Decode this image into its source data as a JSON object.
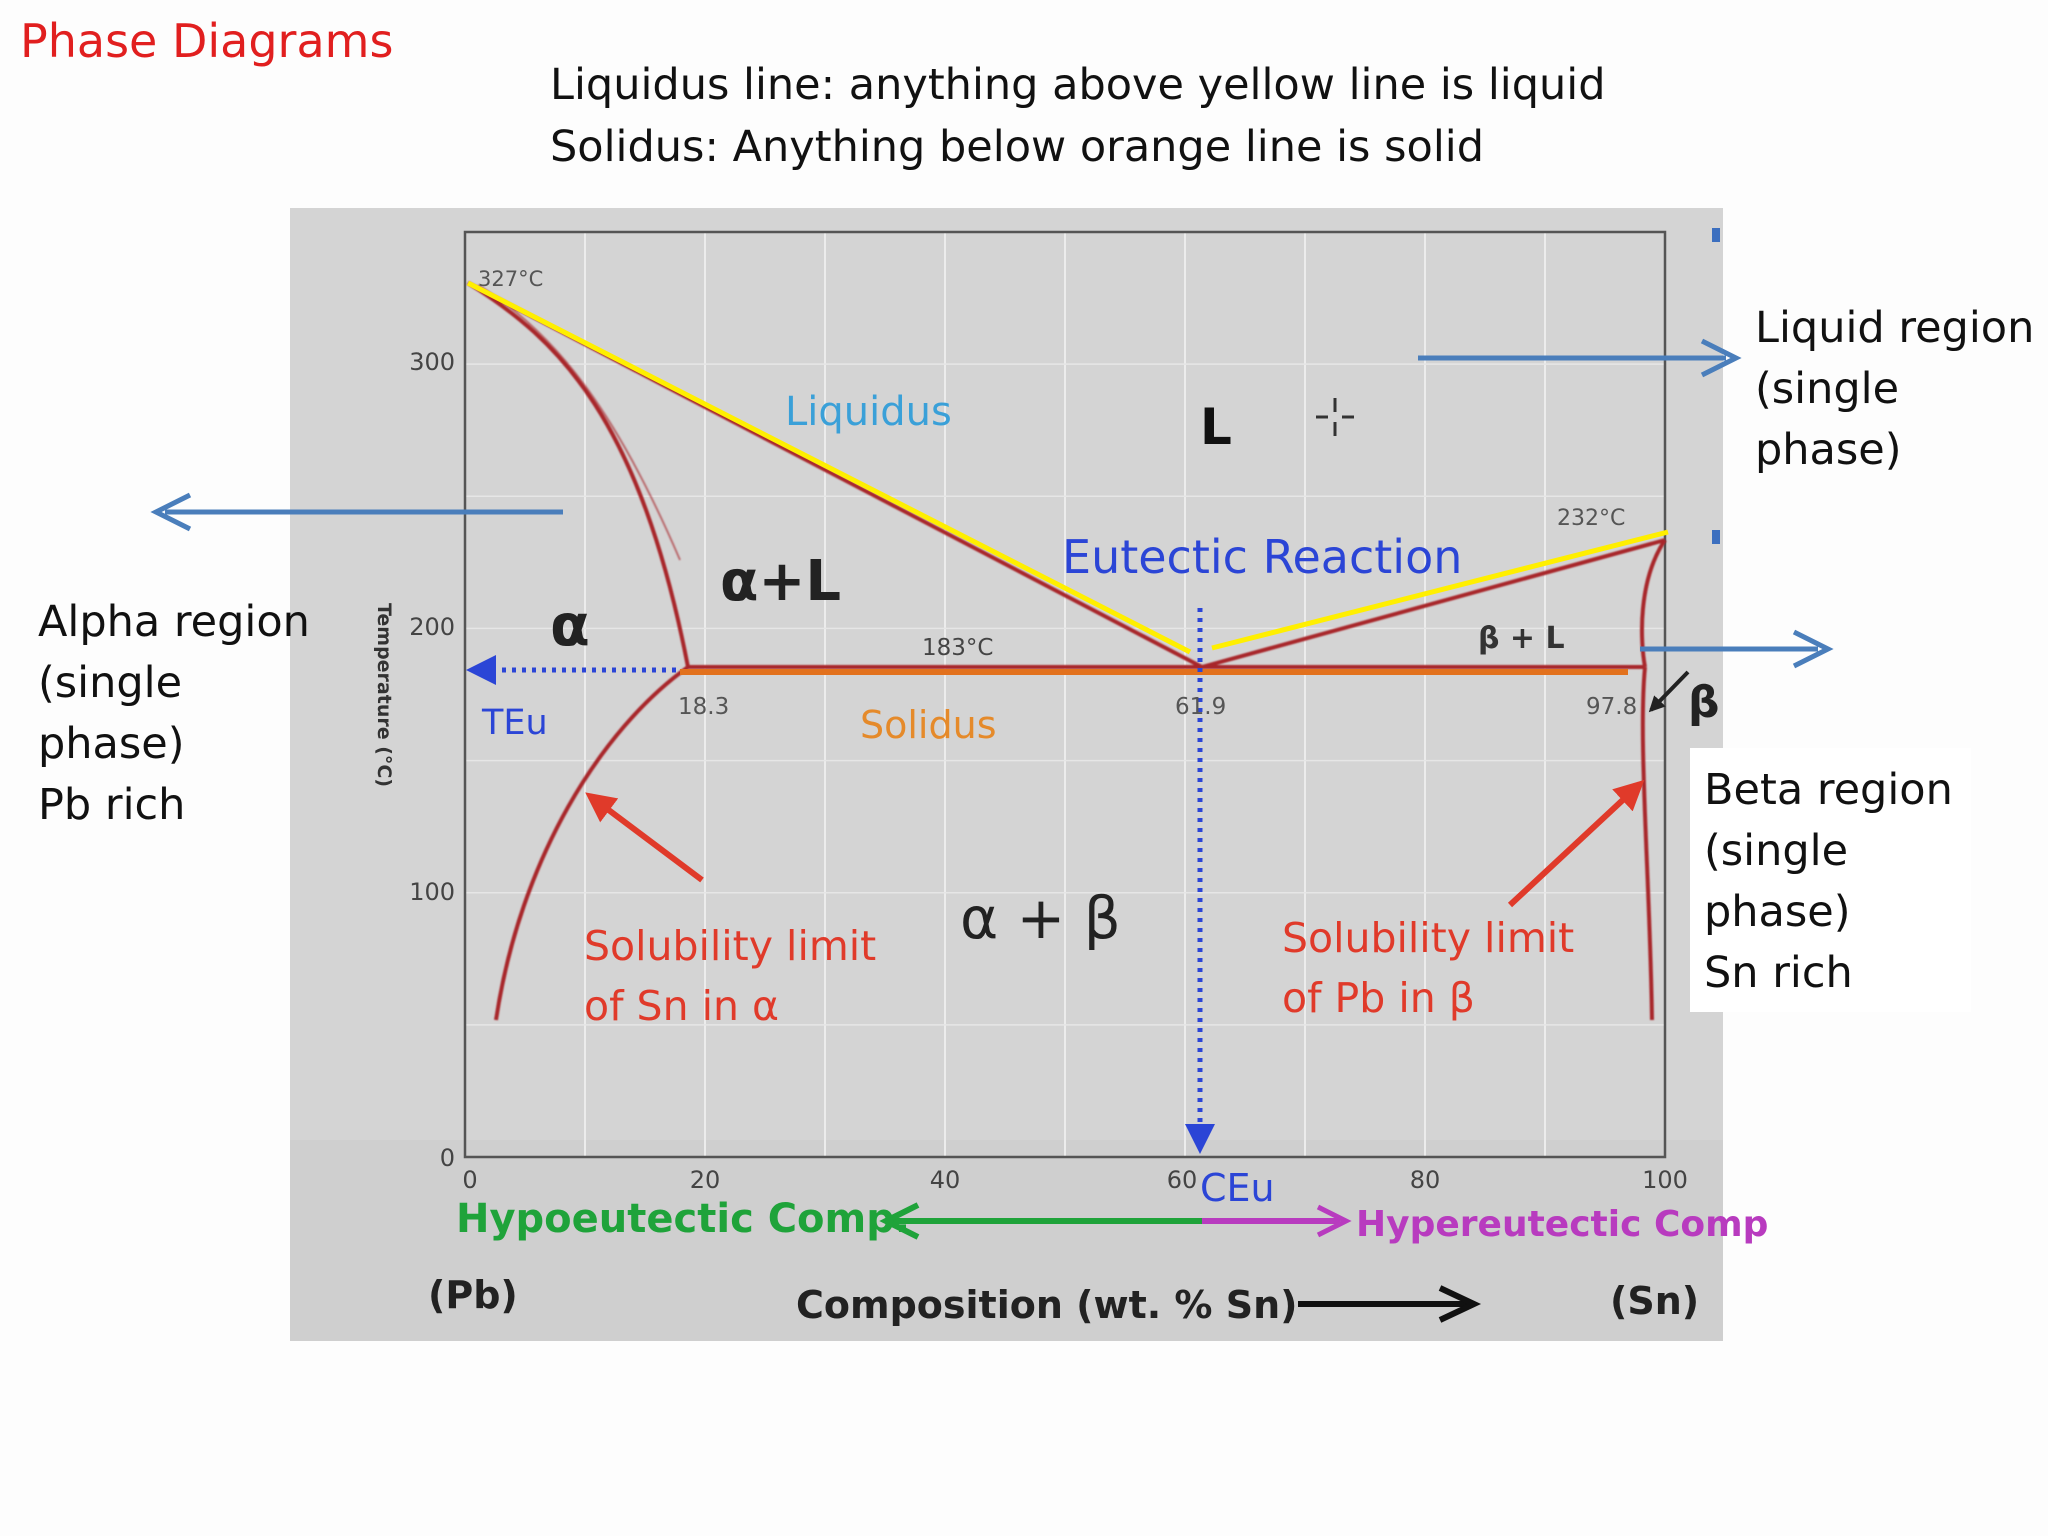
{
  "slide": {
    "title": "Phase Diagrams",
    "header_lines": [
      "Liquidus line: anything above yellow line is liquid",
      "Solidus: Anything below orange line is solid"
    ]
  },
  "notes": {
    "alpha": [
      "Alpha region",
      "(single",
      "phase)",
      "Pb rich"
    ],
    "liquid": [
      "Liquid region",
      "(single",
      "phase)"
    ],
    "beta": [
      "Beta region",
      "(single",
      "phase)",
      "Sn rich"
    ]
  },
  "figure": {
    "y_axis_title": "Temperature (°C)",
    "y_ticks": [
      "0",
      "100",
      "200",
      "300"
    ],
    "x_ticks": [
      "0",
      "20",
      "40",
      "60",
      "80",
      "100"
    ],
    "x_left_end": "(Pb)",
    "x_right_end": "(Sn)",
    "x_axis_title": "Composition (wt. % Sn)",
    "labels": {
      "liquidus": "Liquidus",
      "solidus": "Solidus",
      "liquid": "L",
      "alpha": "α",
      "alpha_plus_liquid": "α+L",
      "beta": "β",
      "beta_plus_liquid": "β + L",
      "alpha_plus_beta": "α + β",
      "eutectic_reaction": "Eutectic Reaction",
      "eutectic_temperature": "TEu",
      "eutectic_composition": "CEu",
      "temp_pb_melt": "327°C",
      "temp_sn_melt": "232°C",
      "temp_eutectic": "183°C",
      "comp_alpha": "18.3",
      "comp_eutectic": "61.9",
      "comp_beta": "97.8",
      "solubility_alpha": [
        "Solubility limit",
        "of Sn in α"
      ],
      "solubility_beta": [
        "Solubility limit",
        "of Pb in β"
      ],
      "hypoeutectic": "Hypoeutectic Comp.",
      "hypereutectic": "Hypereutectic Comp"
    },
    "key_points": {
      "pb_melting": {
        "composition": 0,
        "temperature": 327
      },
      "sn_melting": {
        "composition": 100,
        "temperature": 232
      },
      "eutectic": {
        "composition": 61.9,
        "temperature": 183
      },
      "alpha_max_solubility": {
        "composition": 18.3,
        "temperature": 183
      },
      "beta_max_solubility": {
        "composition": 97.8,
        "temperature": 183
      }
    },
    "colors": {
      "boundary": "#a8262b",
      "liquidus_highlight": "#ffef00",
      "solidus_highlight": "#e2711d",
      "annotation_blue": "#2b45d6",
      "arrow_blue": "#4a7ebb",
      "note_red": "#e03a2a",
      "hypo_green": "#1fa33a",
      "hyper_magenta": "#b83bbf"
    }
  }
}
